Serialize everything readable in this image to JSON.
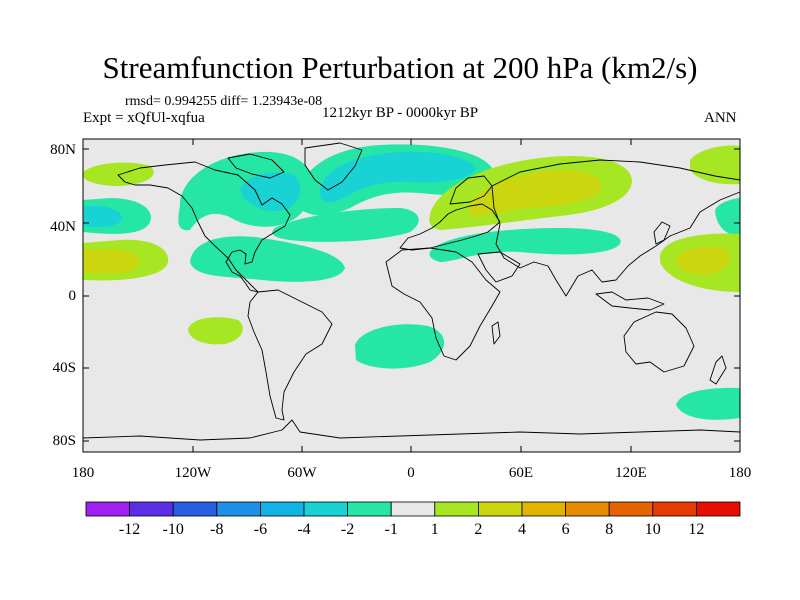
{
  "title": "Streamfunction Perturbation at 200 hPa (km2/s)",
  "stats": "rmsd= 0.994255 diff= 1.23943e-08",
  "left_label": "Expt = xQfUl-xqfua",
  "center_label": "1212kyr BP - 0000kyr BP",
  "right_label": "ANN",
  "map": {
    "projection": "cylindrical equidistant",
    "background": "#e8e8e8",
    "lat_ticks": [
      "80N",
      "40N",
      "0",
      "40S",
      "80S"
    ],
    "lon_ticks": [
      "180",
      "120W",
      "60W",
      "0",
      "60E",
      "120E",
      "180"
    ]
  },
  "colorbar": {
    "colors": [
      "#a020f0",
      "#5a2ee6",
      "#2a5ee0",
      "#1e90e8",
      "#11b4e6",
      "#18d2d4",
      "#26e6a6",
      "#e8e8e8",
      "#a6e622",
      "#ccd60e",
      "#e0b400",
      "#e68a00",
      "#e66400",
      "#e63a00",
      "#e60e00"
    ],
    "labels": [
      "-12",
      "-10",
      "-8",
      "-6",
      "-4",
      "-2",
      "-1",
      "1",
      "2",
      "4",
      "6",
      "8",
      "10",
      "12"
    ]
  },
  "contour_fill": {
    "neg_light": "#26e6a6",
    "neg_dark": "#18d2d4",
    "pos_light": "#a6e622",
    "pos_dark": "#ccd60e"
  }
}
